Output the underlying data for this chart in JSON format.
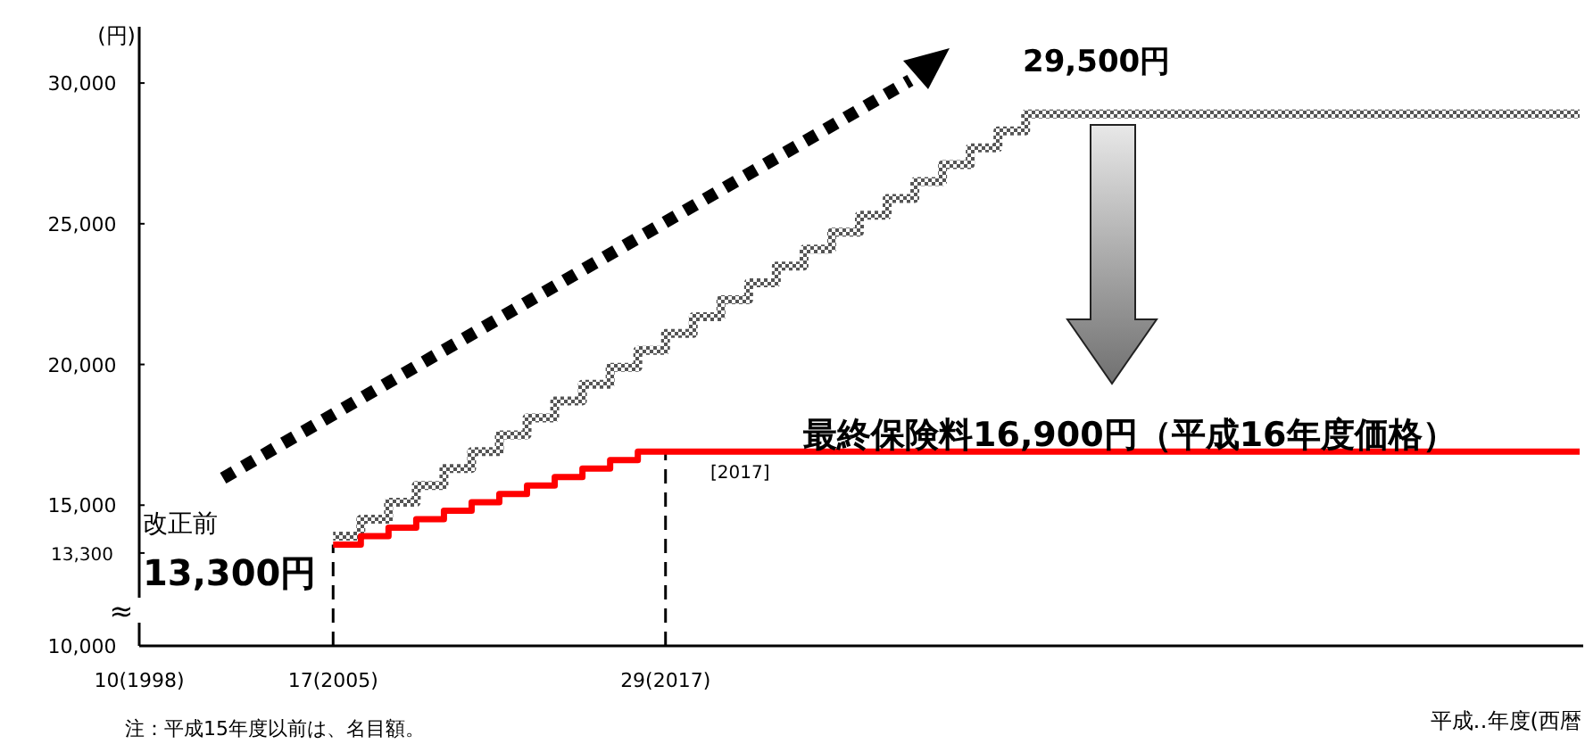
{
  "chart_data": {
    "type": "step",
    "ylabel": "(円)",
    "xlabel": "平成‥年度(西暦",
    "categories": [
      "10(1998)",
      null,
      null,
      null,
      null,
      null,
      null,
      "17(2005)",
      null,
      null,
      null,
      null,
      null,
      null,
      null,
      null,
      null,
      null,
      null,
      "29(2017)",
      null,
      null,
      null,
      null,
      null,
      null,
      null,
      null,
      null,
      null,
      null,
      null,
      null,
      null,
      null,
      null,
      null,
      null,
      null,
      null,
      null,
      null,
      null,
      null,
      null,
      null,
      null,
      null,
      null,
      null,
      null,
      null,
      null
    ],
    "series": [
      {
        "color": "#555555",
        "values": [
          null,
          null,
          null,
          null,
          null,
          null,
          null,
          13900,
          14500,
          15100,
          15700,
          16300,
          16900,
          17500,
          18100,
          18700,
          19300,
          19900,
          20500,
          21100,
          21700,
          22300,
          22900,
          23500,
          24100,
          24700,
          25300,
          25900,
          26500,
          27100,
          27700,
          28300,
          28900,
          28900,
          28900,
          28900,
          28900,
          28900,
          28900,
          28900,
          28900,
          28900,
          28900,
          28900,
          28900,
          28900,
          28900,
          28900,
          28900,
          28900,
          28900,
          28900,
          28900
        ]
      },
      {
        "color": "#ff0000",
        "values": [
          null,
          null,
          null,
          null,
          null,
          null,
          null,
          13600,
          13900,
          14200,
          14500,
          14800,
          15100,
          15400,
          15700,
          16000,
          16300,
          16600,
          16900,
          16900,
          16900,
          16900,
          16900,
          16900,
          16900,
          16900,
          16900,
          16900,
          16900,
          16900,
          16900,
          16900,
          16900,
          16900,
          16900,
          16900,
          16900,
          16900,
          16900,
          16900,
          16900,
          16900,
          16900,
          16900,
          16900,
          16900,
          16900,
          16900,
          16900,
          16900,
          16900,
          16900,
          16900
        ]
      }
    ],
    "ylim": [
      10000,
      32000
    ],
    "yticks": [
      {
        "value": 10000,
        "label": "10,000"
      },
      {
        "value": 13300,
        "label": "13,300"
      },
      {
        "value": 15000,
        "label": "15,000"
      },
      {
        "value": 20000,
        "label": "20,000"
      },
      {
        "value": 25000,
        "label": "25,000"
      },
      {
        "value": 30000,
        "label": "30,000"
      }
    ],
    "ref_lines": [
      {
        "axis": "x",
        "value": "17(2005)",
        "color": "#000000",
        "line_style": "dashed"
      },
      {
        "axis": "x",
        "value": "29(2017)",
        "color": "#000000",
        "line_style": "dashed"
      }
    ],
    "annotations": [
      "29,500円",
      "最終保険料16,900円（平成16年度価格）",
      "[2017]",
      "改正前",
      "13,300円",
      "≈",
      "注：平成15年度以前は、名目額。"
    ]
  }
}
